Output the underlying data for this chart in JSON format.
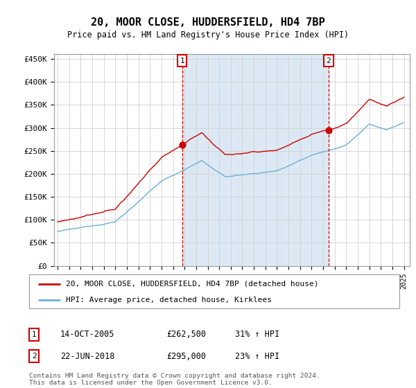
{
  "title": "20, MOOR CLOSE, HUDDERSFIELD, HD4 7BP",
  "subtitle": "Price paid vs. HM Land Registry's House Price Index (HPI)",
  "plot_bg_color": "#ffffff",
  "highlight_color": "#dce9f5",
  "y_ticks": [
    0,
    50000,
    100000,
    150000,
    200000,
    250000,
    300000,
    350000,
    400000,
    450000
  ],
  "y_tick_labels": [
    "£0",
    "£50K",
    "£100K",
    "£150K",
    "£200K",
    "£250K",
    "£300K",
    "£350K",
    "£400K",
    "£450K"
  ],
  "x_start_year": 1995,
  "x_end_year": 2025,
  "hpi_color": "#6baed6",
  "price_color": "#cc0000",
  "vline_color": "#cc0000",
  "sale1_year": 2005.79,
  "sale1_price": 262500,
  "sale2_year": 2018.47,
  "sale2_price": 295000,
  "legend_label_red": "20, MOOR CLOSE, HUDDERSFIELD, HD4 7BP (detached house)",
  "legend_label_blue": "HPI: Average price, detached house, Kirklees",
  "table_row1": [
    "1",
    "14-OCT-2005",
    "£262,500",
    "31% ↑ HPI"
  ],
  "table_row2": [
    "2",
    "22-JUN-2018",
    "£295,000",
    "23% ↑ HPI"
  ],
  "footer": "Contains HM Land Registry data © Crown copyright and database right 2024.\nThis data is licensed under the Open Government Licence v3.0.",
  "ylim": [
    0,
    460000
  ],
  "xlim_left": 1994.7,
  "xlim_right": 2025.5
}
